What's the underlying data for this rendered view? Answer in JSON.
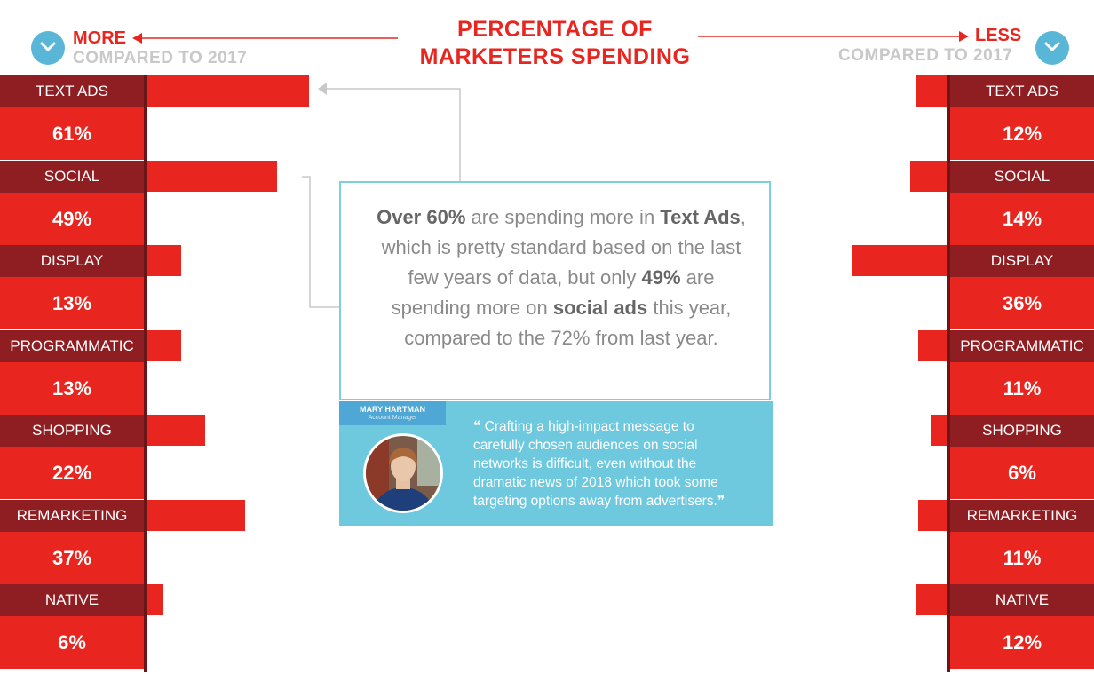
{
  "header": {
    "title_line1": "PERCENTAGE OF",
    "title_line2": "MARKETERS SPENDING"
  },
  "left_header": {
    "label": "MORE",
    "sub": "COMPARED TO 2017",
    "icon": "chevron-down-icon"
  },
  "right_header": {
    "label": "LESS",
    "sub": "COMPARED TO 2017",
    "icon": "chevron-down-icon"
  },
  "callout": {
    "p1_b1": "Over 60%",
    "p1_t1": " are spending more in ",
    "p1_b2": "Text Ads",
    "p1_t2": ", which is pretty standard based on the last few years of data, but only ",
    "p2_b1": "49%",
    "p2_t1": " are spending more on ",
    "p2_b2": "social ads",
    "p2_t2": " this year, compared to the 72% from last year."
  },
  "quote": {
    "name": "MARY HARTMAN",
    "role": "Account Manager",
    "text": "Crafting a high-impact message to carefully chosen audiences on social networks is difficult, even without the dramatic news of 2018 which took some targeting options away from advertisers."
  },
  "colors": {
    "red": "#e8261f",
    "dark_red": "#8e1e22",
    "blue": "#6ec9df",
    "circle": "#5ab6d6"
  },
  "chart_data": {
    "type": "bar",
    "categories": [
      "TEXT ADS",
      "SOCIAL",
      "DISPLAY",
      "PROGRAMMATIC",
      "SHOPPING",
      "REMARKETING",
      "NATIVE"
    ],
    "series": [
      {
        "name": "MORE",
        "values": [
          61,
          49,
          13,
          13,
          22,
          37,
          6
        ],
        "labels": [
          "61%",
          "49%",
          "13%",
          "13%",
          "22%",
          "37%",
          "6%"
        ]
      },
      {
        "name": "LESS",
        "values": [
          12,
          14,
          36,
          11,
          6,
          11,
          12
        ],
        "labels": [
          "12%",
          "14%",
          "36%",
          "11%",
          "6%",
          "11%",
          "12%"
        ]
      }
    ]
  }
}
